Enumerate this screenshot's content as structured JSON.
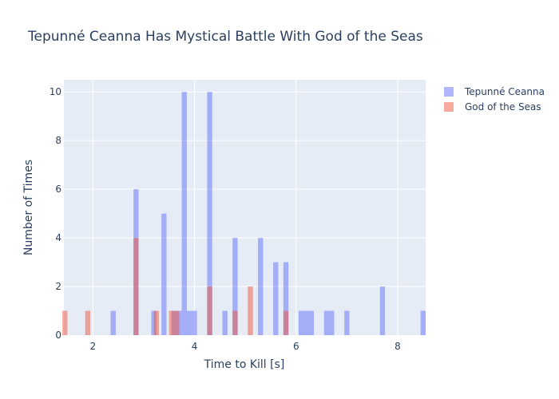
{
  "chart_data": {
    "type": "bar",
    "title": "Tepunné Ceanna Has Mystical Battle With God of the Seas",
    "xlabel": "Time to Kill [s]",
    "ylabel": "Number of Times",
    "xlim": [
      1.43,
      8.55
    ],
    "ylim": [
      0,
      10.5
    ],
    "x_ticks": [
      2,
      4,
      6,
      8
    ],
    "y_ticks": [
      0,
      2,
      4,
      6,
      8,
      10
    ],
    "grid": true,
    "legend_position": "top-right",
    "barmode": "overlay",
    "bin_width": 0.1,
    "series": [
      {
        "name": "Tepunné Ceanna",
        "color": "#636efa",
        "opacity": 0.5,
        "bins": [
          {
            "x": 2.4,
            "y": 1
          },
          {
            "x": 2.85,
            "y": 6
          },
          {
            "x": 3.2,
            "y": 1
          },
          {
            "x": 3.4,
            "y": 5
          },
          {
            "x": 3.6,
            "y": 1
          },
          {
            "x": 3.7,
            "y": 1
          },
          {
            "x": 3.8,
            "y": 10
          },
          {
            "x": 3.9,
            "y": 1
          },
          {
            "x": 4.0,
            "y": 1
          },
          {
            "x": 4.3,
            "y": 10
          },
          {
            "x": 4.6,
            "y": 1
          },
          {
            "x": 4.8,
            "y": 4
          },
          {
            "x": 5.3,
            "y": 4
          },
          {
            "x": 5.6,
            "y": 3
          },
          {
            "x": 5.8,
            "y": 3
          },
          {
            "x": 6.1,
            "y": 1
          },
          {
            "x": 6.2,
            "y": 1
          },
          {
            "x": 6.3,
            "y": 1
          },
          {
            "x": 6.6,
            "y": 1
          },
          {
            "x": 6.7,
            "y": 1
          },
          {
            "x": 7.0,
            "y": 1
          },
          {
            "x": 7.7,
            "y": 2
          },
          {
            "x": 8.5,
            "y": 1
          }
        ]
      },
      {
        "name": "God of the Seas",
        "color": "#ef553b",
        "opacity": 0.5,
        "bins": [
          {
            "x": 1.45,
            "y": 1
          },
          {
            "x": 1.9,
            "y": 1
          },
          {
            "x": 2.85,
            "y": 4
          },
          {
            "x": 3.25,
            "y": 1
          },
          {
            "x": 3.55,
            "y": 1
          },
          {
            "x": 3.65,
            "y": 1
          },
          {
            "x": 4.3,
            "y": 2
          },
          {
            "x": 4.8,
            "y": 1
          },
          {
            "x": 5.1,
            "y": 2
          },
          {
            "x": 5.8,
            "y": 1
          }
        ]
      }
    ]
  }
}
